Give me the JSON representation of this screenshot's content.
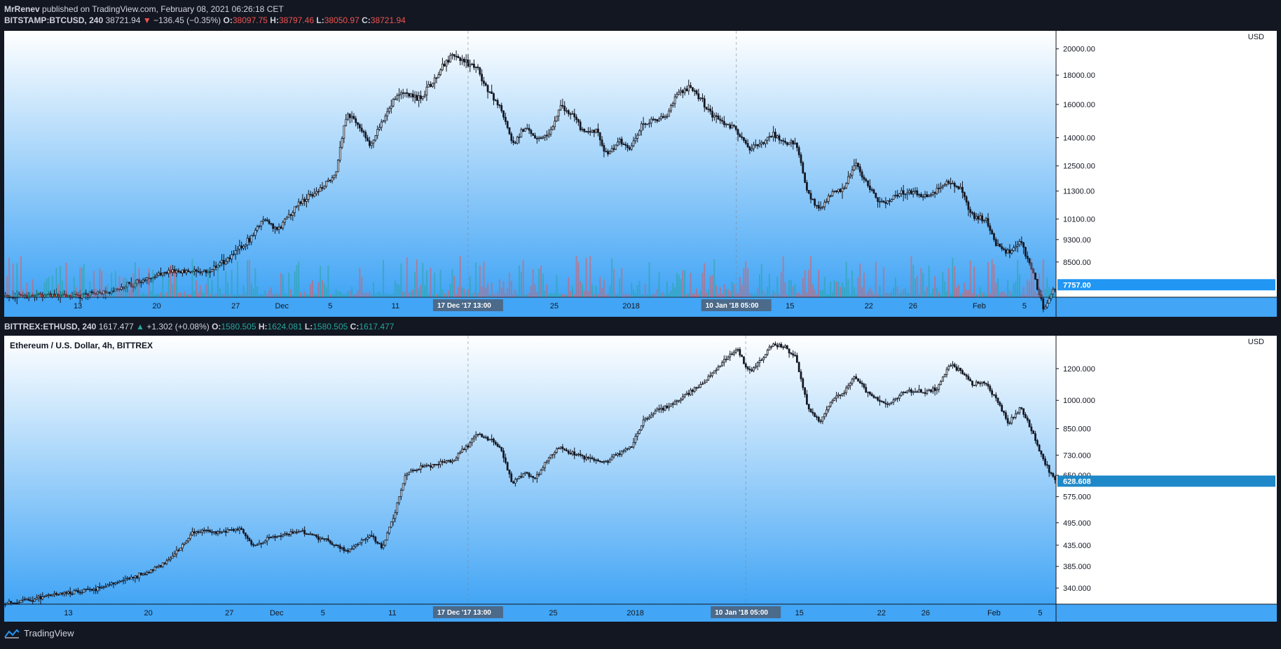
{
  "header": {
    "author": "MrRenev",
    "published": "published on TradingView.com, February 08, 2021 06:26:18 CET"
  },
  "btc_legend": {
    "symbol": "BITSTAMP:BTCUSD, 240",
    "last": "38721.94",
    "change": "−136.45 (−0.35%)",
    "o_label": "O:",
    "o": "38097.75",
    "h_label": "H:",
    "h": "38797.46",
    "l_label": "L:",
    "l": "38050.97",
    "c_label": "C:",
    "c": "38721.94"
  },
  "eth_legend": {
    "symbol": "BITTREX:ETHUSD, 240",
    "last": "1617.477",
    "change": "+1.302 (+0.08%)",
    "o_label": "O:",
    "o": "1580.505",
    "h_label": "H:",
    "h": "1624.081",
    "l_label": "L:",
    "l": "1580.505",
    "c_label": "C:",
    "c": "1617.477"
  },
  "footer": {
    "brand": "TradingView"
  },
  "colors": {
    "background": "#131722",
    "gradient_top": "#ffffff",
    "gradient_bottom": "#42a5f5",
    "candle": "#131722",
    "volume_up": "#26a69a",
    "volume_down": "#ef5350",
    "price_tag": "#2196f3",
    "eth_price_tag": "#1e88c8",
    "crosshair_label": "#4c6a8a"
  },
  "chart_data": [
    {
      "type": "candlestick",
      "name": "btc",
      "unit": "USD",
      "scale": "log",
      "ylim": [
        7380,
        21500
      ],
      "y_ticks": [
        20000.0,
        18000.0,
        16000.0,
        14000.0,
        12500.0,
        11300.0,
        10100.0,
        9300.0,
        8500.0
      ],
      "y_tick_labels": [
        "20000.00",
        "18000.00",
        "16000.00",
        "14000.00",
        "12500.00",
        "11300.00",
        "10100.00",
        "9300.00",
        "8500.00"
      ],
      "last_price": "7757.00",
      "x_labels": [
        "13",
        "20",
        "27",
        "Dec",
        "5",
        "11",
        "25",
        "2018",
        "15",
        "22",
        "26",
        "Feb",
        "5"
      ],
      "x_label_pos": [
        0.07,
        0.145,
        0.22,
        0.264,
        0.31,
        0.372,
        0.523,
        0.596,
        0.747,
        0.822,
        0.864,
        0.927,
        0.97
      ],
      "crosshair_labels": [
        "17 Dec '17",
        "13:00",
        "10 Jan '18",
        "05:00"
      ],
      "crosshair_pos": [
        0.441,
        0.696
      ],
      "x_range": [
        "2017-11-09",
        "2018-02-06"
      ],
      "path": [
        [
          "2017-11-09",
          7400
        ],
        [
          "2017-11-12",
          7450
        ],
        [
          "2017-11-15",
          7420
        ],
        [
          "2017-11-18",
          7550
        ],
        [
          "2017-11-20",
          7800
        ],
        [
          "2017-11-22",
          8100
        ],
        [
          "2017-11-24",
          8200
        ],
        [
          "2017-11-26",
          8150
        ],
        [
          "2017-11-28",
          8600
        ],
        [
          "2017-11-30",
          9400
        ],
        [
          "2017-12-01",
          10200
        ],
        [
          "2017-12-02",
          9600
        ],
        [
          "2017-12-04",
          10800
        ],
        [
          "2017-12-06",
          11500
        ],
        [
          "2017-12-07",
          12000
        ],
        [
          "2017-12-08",
          15500
        ],
        [
          "2017-12-09",
          14800
        ],
        [
          "2017-12-10",
          13500
        ],
        [
          "2017-12-11",
          15000
        ],
        [
          "2017-12-12",
          16500
        ],
        [
          "2017-12-13",
          16800
        ],
        [
          "2017-12-14",
          16300
        ],
        [
          "2017-12-15",
          17200
        ],
        [
          "2017-12-16",
          18500
        ],
        [
          "2017-12-17",
          19500
        ],
        [
          "2017-12-18",
          19000
        ],
        [
          "2017-12-19",
          18500
        ],
        [
          "2017-12-20",
          16800
        ],
        [
          "2017-12-21",
          15800
        ],
        [
          "2017-12-22",
          13600
        ],
        [
          "2017-12-23",
          14600
        ],
        [
          "2017-12-24",
          14000
        ],
        [
          "2017-12-25",
          14100
        ],
        [
          "2017-12-26",
          15800
        ],
        [
          "2017-12-27",
          15500
        ],
        [
          "2017-12-28",
          14300
        ],
        [
          "2017-12-29",
          14500
        ],
        [
          "2017-12-30",
          13000
        ],
        [
          "2017-12-31",
          13800
        ],
        [
          "2018-01-01",
          13400
        ],
        [
          "2018-01-02",
          14800
        ],
        [
          "2018-01-03",
          15000
        ],
        [
          "2018-01-04",
          15200
        ],
        [
          "2018-01-05",
          16800
        ],
        [
          "2018-01-06",
          17100
        ],
        [
          "2018-01-07",
          16300
        ],
        [
          "2018-01-08",
          15200
        ],
        [
          "2018-01-09",
          14900
        ],
        [
          "2018-01-10",
          14400
        ],
        [
          "2018-01-11",
          13400
        ],
        [
          "2018-01-12",
          13700
        ],
        [
          "2018-01-13",
          14200
        ],
        [
          "2018-01-14",
          13800
        ],
        [
          "2018-01-15",
          13700
        ],
        [
          "2018-01-16",
          11200
        ],
        [
          "2018-01-17",
          10400
        ],
        [
          "2018-01-18",
          11200
        ],
        [
          "2018-01-19",
          11400
        ],
        [
          "2018-01-20",
          12600
        ],
        [
          "2018-01-21",
          11600
        ],
        [
          "2018-01-22",
          10800
        ],
        [
          "2018-01-23",
          10900
        ],
        [
          "2018-01-24",
          11300
        ],
        [
          "2018-01-25",
          11200
        ],
        [
          "2018-01-26",
          11100
        ],
        [
          "2018-01-27",
          11400
        ],
        [
          "2018-01-28",
          11800
        ],
        [
          "2018-01-29",
          11300
        ],
        [
          "2018-01-30",
          10200
        ],
        [
          "2018-01-31",
          10100
        ],
        [
          "2018-02-01",
          9100
        ],
        [
          "2018-02-02",
          8800
        ],
        [
          "2018-02-03",
          9200
        ],
        [
          "2018-02-04",
          8200
        ],
        [
          "2018-02-05",
          7000
        ],
        [
          "2018-02-06",
          7757
        ]
      ]
    },
    {
      "type": "candlestick",
      "name": "eth",
      "title": "Ethereum / U.S. Dollar, 4h, BITTREX",
      "unit": "USD",
      "scale": "log",
      "ylim": [
        310,
        1450
      ],
      "y_ticks": [
        1200.0,
        1000.0,
        850.0,
        730.0,
        650.0,
        575.0,
        495.0,
        435.0,
        385.0,
        340.0
      ],
      "y_tick_labels": [
        "1200.000",
        "1000.000",
        "850.000",
        "730.000",
        "650.000",
        "575.000",
        "495.000",
        "435.000",
        "385.000",
        "340.000"
      ],
      "last_price": "628.608",
      "x_labels": [
        "13",
        "20",
        "27",
        "Dec",
        "5",
        "11",
        "25",
        "2018",
        "15",
        "22",
        "26",
        "Feb",
        "5"
      ],
      "x_label_pos": [
        0.061,
        0.137,
        0.214,
        0.259,
        0.303,
        0.369,
        0.522,
        0.6,
        0.756,
        0.834,
        0.876,
        0.941,
        0.985
      ],
      "crosshair_labels": [
        "17 Dec '17",
        "13:00",
        "10 Jan '18",
        "05:00"
      ],
      "crosshair_pos": [
        0.441,
        0.705
      ],
      "x_range": [
        "2017-11-09",
        "2018-02-06"
      ],
      "path": [
        [
          "2017-11-09",
          310
        ],
        [
          "2017-11-14",
          330
        ],
        [
          "2017-11-17",
          340
        ],
        [
          "2017-11-19",
          355
        ],
        [
          "2017-11-21",
          370
        ],
        [
          "2017-11-23",
          400
        ],
        [
          "2017-11-25",
          470
        ],
        [
          "2017-11-27",
          470
        ],
        [
          "2017-11-29",
          480
        ],
        [
          "2017-11-30",
          430
        ],
        [
          "2017-12-02",
          460
        ],
        [
          "2017-12-04",
          470
        ],
        [
          "2017-12-06",
          450
        ],
        [
          "2017-12-08",
          420
        ],
        [
          "2017-12-10",
          460
        ],
        [
          "2017-12-11",
          430
        ],
        [
          "2017-12-12",
          520
        ],
        [
          "2017-12-13",
          660
        ],
        [
          "2017-12-15",
          690
        ],
        [
          "2017-12-17",
          710
        ],
        [
          "2017-12-18",
          760
        ],
        [
          "2017-12-19",
          820
        ],
        [
          "2017-12-20",
          800
        ],
        [
          "2017-12-21",
          760
        ],
        [
          "2017-12-22",
          620
        ],
        [
          "2017-12-23",
          660
        ],
        [
          "2017-12-24",
          640
        ],
        [
          "2017-12-25",
          720
        ],
        [
          "2017-12-26",
          760
        ],
        [
          "2017-12-28",
          720
        ],
        [
          "2017-12-30",
          700
        ],
        [
          "2017-12-31",
          740
        ],
        [
          "2018-01-01",
          760
        ],
        [
          "2018-01-02",
          880
        ],
        [
          "2018-01-03",
          940
        ],
        [
          "2018-01-04",
          960
        ],
        [
          "2018-01-05",
          1000
        ],
        [
          "2018-01-07",
          1100
        ],
        [
          "2018-01-09",
          1260
        ],
        [
          "2018-01-10",
          1350
        ],
        [
          "2018-01-11",
          1180
        ],
        [
          "2018-01-12",
          1250
        ],
        [
          "2018-01-13",
          1380
        ],
        [
          "2018-01-14",
          1360
        ],
        [
          "2018-01-15",
          1280
        ],
        [
          "2018-01-16",
          950
        ],
        [
          "2018-01-17",
          880
        ],
        [
          "2018-01-18",
          1000
        ],
        [
          "2018-01-19",
          1050
        ],
        [
          "2018-01-20",
          1150
        ],
        [
          "2018-01-21",
          1050
        ],
        [
          "2018-01-22",
          1000
        ],
        [
          "2018-01-23",
          980
        ],
        [
          "2018-01-24",
          1050
        ],
        [
          "2018-01-25",
          1060
        ],
        [
          "2018-01-26",
          1050
        ],
        [
          "2018-01-27",
          1080
        ],
        [
          "2018-01-28",
          1230
        ],
        [
          "2018-01-29",
          1180
        ],
        [
          "2018-01-30",
          1100
        ],
        [
          "2018-01-31",
          1110
        ],
        [
          "2018-02-01",
          1000
        ],
        [
          "2018-02-02",
          880
        ],
        [
          "2018-02-03",
          960
        ],
        [
          "2018-02-04",
          830
        ],
        [
          "2018-02-05",
          700
        ],
        [
          "2018-02-06",
          628
        ]
      ]
    }
  ]
}
